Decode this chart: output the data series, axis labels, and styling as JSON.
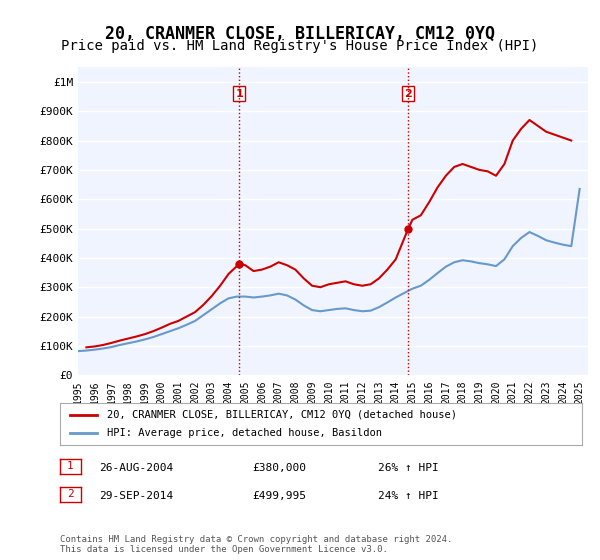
{
  "title": "20, CRANMER CLOSE, BILLERICAY, CM12 0YQ",
  "subtitle": "Price paid vs. HM Land Registry's House Price Index (HPI)",
  "title_fontsize": 12,
  "subtitle_fontsize": 10,
  "xlabel": "",
  "ylabel": "",
  "ylim": [
    0,
    1050000
  ],
  "xlim_start": 1995.0,
  "xlim_end": 2025.5,
  "yticks": [
    0,
    100000,
    200000,
    300000,
    400000,
    500000,
    600000,
    700000,
    800000,
    900000,
    1000000
  ],
  "ytick_labels": [
    "£0",
    "£100K",
    "£200K",
    "£300K",
    "£400K",
    "£500K",
    "£600K",
    "£700K",
    "£800K",
    "£900K",
    "£1M"
  ],
  "background_color": "#ffffff",
  "plot_bg_color": "#f0f4ff",
  "grid_color": "#ffffff",
  "red_line_color": "#cc0000",
  "blue_line_color": "#6699cc",
  "vline_color": "#cc0000",
  "marker1_year": 2004.65,
  "marker1_value": 380000,
  "marker2_year": 2014.75,
  "marker2_value": 499995,
  "legend_label_red": "20, CRANMER CLOSE, BILLERICAY, CM12 0YQ (detached house)",
  "legend_label_blue": "HPI: Average price, detached house, Basildon",
  "annot1_num": "1",
  "annot1_date": "26-AUG-2004",
  "annot1_price": "£380,000",
  "annot1_hpi": "26% ↑ HPI",
  "annot2_num": "2",
  "annot2_date": "29-SEP-2014",
  "annot2_price": "£499,995",
  "annot2_hpi": "24% ↑ HPI",
  "footer": "Contains HM Land Registry data © Crown copyright and database right 2024.\nThis data is licensed under the Open Government Licence v3.0.",
  "xtick_years": [
    1995,
    1996,
    1997,
    1998,
    1999,
    2000,
    2001,
    2002,
    2003,
    2004,
    2005,
    2006,
    2007,
    2008,
    2009,
    2010,
    2011,
    2012,
    2013,
    2014,
    2015,
    2016,
    2017,
    2018,
    2019,
    2020,
    2021,
    2022,
    2023,
    2024,
    2025
  ],
  "red_x": [
    1995.5,
    1996.0,
    1996.5,
    1997.0,
    1997.5,
    1998.0,
    1998.5,
    1999.0,
    1999.5,
    2000.0,
    2000.5,
    2001.0,
    2001.5,
    2002.0,
    2002.5,
    2003.0,
    2003.5,
    2004.0,
    2004.65,
    2005.0,
    2005.5,
    2006.0,
    2006.5,
    2007.0,
    2007.5,
    2008.0,
    2008.5,
    2009.0,
    2009.5,
    2010.0,
    2010.5,
    2011.0,
    2011.5,
    2012.0,
    2012.5,
    2013.0,
    2013.5,
    2014.0,
    2014.75,
    2015.0,
    2015.5,
    2016.0,
    2016.5,
    2017.0,
    2017.5,
    2018.0,
    2018.5,
    2019.0,
    2019.5,
    2020.0,
    2020.5,
    2021.0,
    2021.5,
    2022.0,
    2022.5,
    2023.0,
    2023.5,
    2024.0,
    2024.5
  ],
  "red_y": [
    95000,
    98000,
    103000,
    110000,
    118000,
    125000,
    132000,
    140000,
    150000,
    162000,
    175000,
    185000,
    200000,
    215000,
    240000,
    270000,
    305000,
    345000,
    380000,
    375000,
    355000,
    360000,
    370000,
    385000,
    375000,
    360000,
    330000,
    305000,
    300000,
    310000,
    315000,
    320000,
    310000,
    305000,
    310000,
    330000,
    360000,
    395000,
    499995,
    530000,
    545000,
    590000,
    640000,
    680000,
    710000,
    720000,
    710000,
    700000,
    695000,
    680000,
    720000,
    800000,
    840000,
    870000,
    850000,
    830000,
    820000,
    810000,
    800000
  ],
  "blue_x": [
    1995.0,
    1995.5,
    1996.0,
    1996.5,
    1997.0,
    1997.5,
    1998.0,
    1998.5,
    1999.0,
    1999.5,
    2000.0,
    2000.5,
    2001.0,
    2001.5,
    2002.0,
    2002.5,
    2003.0,
    2003.5,
    2004.0,
    2004.5,
    2005.0,
    2005.5,
    2006.0,
    2006.5,
    2007.0,
    2007.5,
    2008.0,
    2008.5,
    2009.0,
    2009.5,
    2010.0,
    2010.5,
    2011.0,
    2011.5,
    2012.0,
    2012.5,
    2013.0,
    2013.5,
    2014.0,
    2014.5,
    2015.0,
    2015.5,
    2016.0,
    2016.5,
    2017.0,
    2017.5,
    2018.0,
    2018.5,
    2019.0,
    2019.5,
    2020.0,
    2020.5,
    2021.0,
    2021.5,
    2022.0,
    2022.5,
    2023.0,
    2023.5,
    2024.0,
    2024.5,
    2025.0
  ],
  "blue_y": [
    82000,
    84000,
    87000,
    91000,
    96000,
    103000,
    109000,
    115000,
    122000,
    130000,
    140000,
    150000,
    160000,
    172000,
    185000,
    205000,
    225000,
    245000,
    262000,
    268000,
    268000,
    265000,
    268000,
    272000,
    278000,
    272000,
    258000,
    238000,
    222000,
    218000,
    222000,
    226000,
    228000,
    222000,
    218000,
    220000,
    232000,
    248000,
    265000,
    280000,
    295000,
    305000,
    325000,
    348000,
    370000,
    385000,
    392000,
    388000,
    382000,
    378000,
    372000,
    395000,
    440000,
    468000,
    488000,
    475000,
    460000,
    452000,
    445000,
    440000,
    635000
  ]
}
